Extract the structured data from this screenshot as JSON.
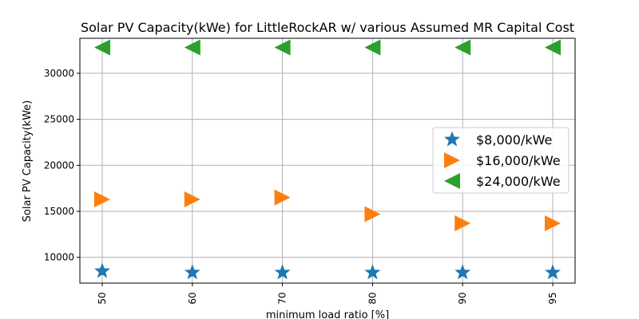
{
  "chart_data": {
    "type": "scatter",
    "title": "Solar PV Capacity(kWe) for LittleRockAR w/ various Assumed MR Capital Cost",
    "xlabel": "minimum load ratio [%]",
    "ylabel": "Solar PV Capacity(kWe)",
    "categories": [
      "50",
      "60",
      "70",
      "80",
      "90",
      "95"
    ],
    "ylim": [
      7200,
      33800
    ],
    "yticks": [
      10000,
      15000,
      20000,
      25000,
      30000
    ],
    "grid": true,
    "legend_position": "right",
    "series": [
      {
        "name": "$8,000/kWe",
        "marker": "star",
        "color": "#1f77b4",
        "values": [
          8500,
          8350,
          8350,
          8350,
          8350,
          8350
        ]
      },
      {
        "name": "$16,000/kWe",
        "marker": "triangle-right",
        "color": "#ff7f0e",
        "values": [
          16300,
          16300,
          16500,
          14700,
          13700,
          13700
        ]
      },
      {
        "name": "$24,000/kWe",
        "marker": "triangle-left",
        "color": "#2ca02c",
        "values": [
          32800,
          32800,
          32800,
          32800,
          32800,
          32800
        ]
      }
    ]
  }
}
